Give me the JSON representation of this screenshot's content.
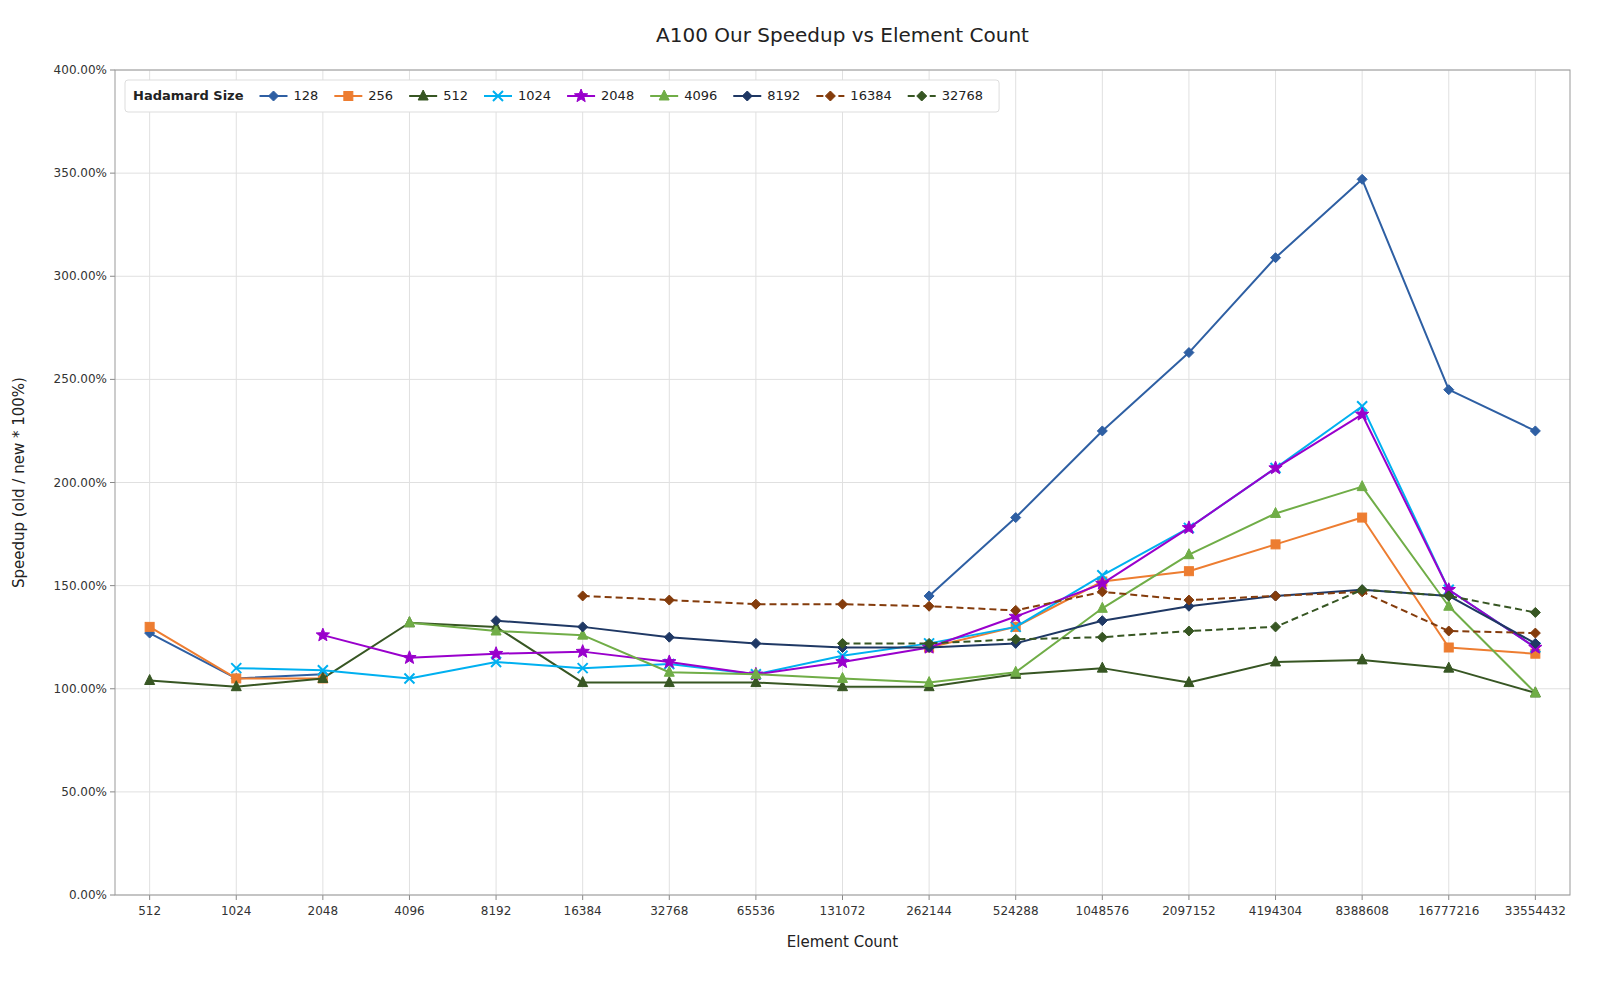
{
  "chart_data": {
    "type": "line",
    "title": "A100 Our Speedup vs Element Count",
    "x_label": "Element Count",
    "y_label": "Speedup (old / new * 100%)",
    "legend_title": "Hadamard Size",
    "legend": "upper left",
    "grid": true,
    "categories": [
      "512",
      "1024",
      "2048",
      "4096",
      "8192",
      "16384",
      "32768",
      "65536",
      "131072",
      "262144",
      "524288",
      "1048576",
      "2097152",
      "4194304",
      "8388608",
      "16777216",
      "33554432"
    ],
    "series": [
      {
        "name": "128",
        "color": "#2e5fa3",
        "marker": "diamond",
        "line_style": "solid",
        "values": [
          127,
          105,
          107,
          null,
          null,
          null,
          null,
          null,
          null,
          145,
          183,
          225,
          263,
          309,
          347,
          245,
          225
        ]
      },
      {
        "name": "256",
        "color": "#ed7d31",
        "marker": "square",
        "line_style": "solid",
        "values": [
          130,
          105,
          105,
          null,
          null,
          null,
          null,
          null,
          null,
          120,
          130,
          152,
          157,
          170,
          183,
          120,
          117
        ]
      },
      {
        "name": "512",
        "color": "#375623",
        "marker": "triangle",
        "line_style": "solid",
        "values": [
          104,
          101,
          105,
          132,
          130,
          103,
          103,
          103,
          101,
          101,
          107,
          110,
          103,
          113,
          114,
          110,
          98
        ]
      },
      {
        "name": "1024",
        "color": "#00b0f0",
        "marker": "x",
        "line_style": "solid",
        "values": [
          null,
          110,
          109,
          105,
          113,
          110,
          112,
          107,
          116,
          122,
          130,
          155,
          178,
          207,
          237,
          148,
          120
        ]
      },
      {
        "name": "2048",
        "color": "#9900cc",
        "marker": "star",
        "line_style": "solid",
        "values": [
          null,
          null,
          126,
          115,
          117,
          118,
          113,
          107,
          113,
          120,
          135,
          151,
          178,
          207,
          233,
          148,
          120
        ]
      },
      {
        "name": "4096",
        "color": "#70ad47",
        "marker": "triangle",
        "line_style": "solid",
        "values": [
          null,
          null,
          null,
          132,
          128,
          126,
          108,
          107,
          105,
          103,
          108,
          139,
          165,
          185,
          198,
          140,
          98
        ]
      },
      {
        "name": "8192",
        "color": "#1f3864",
        "marker": "diamond",
        "line_style": "solid",
        "values": [
          null,
          null,
          null,
          null,
          133,
          130,
          125,
          122,
          120,
          120,
          122,
          133,
          140,
          145,
          148,
          145,
          122
        ]
      },
      {
        "name": "16384",
        "color": "#843c0c",
        "marker": "diamond",
        "line_style": "dashed",
        "values": [
          null,
          null,
          null,
          null,
          null,
          145,
          143,
          141,
          141,
          140,
          138,
          147,
          143,
          145,
          147,
          128,
          127
        ]
      },
      {
        "name": "32768",
        "color": "#375623",
        "marker": "diamond",
        "line_style": "dashed",
        "values": [
          null,
          null,
          null,
          null,
          null,
          null,
          null,
          null,
          122,
          122,
          124,
          125,
          128,
          130,
          148,
          145,
          137
        ]
      }
    ],
    "ylim": [
      0,
      400
    ],
    "yticks": [
      {
        "value": 0,
        "label": "0.00%"
      },
      {
        "value": 50,
        "label": "50.00%"
      },
      {
        "value": 100,
        "label": "100.00%"
      },
      {
        "value": 150,
        "label": "150.00%"
      },
      {
        "value": 200,
        "label": "200.00%"
      },
      {
        "value": 250,
        "label": "250.00%"
      },
      {
        "value": 300,
        "label": "300.00%"
      },
      {
        "value": 350,
        "label": "350.00%"
      },
      {
        "value": 400,
        "label": "400.00%"
      }
    ]
  }
}
